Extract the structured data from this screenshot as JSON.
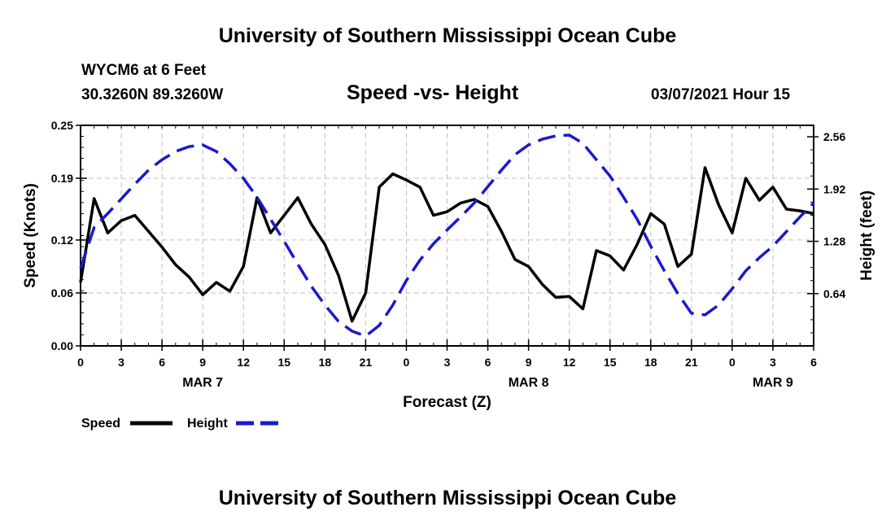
{
  "header": {
    "title": "University of Southern Mississippi Ocean Cube",
    "station_name": "WYCM6 at 6 Feet",
    "station_coords": "30.3260N 89.3260W",
    "run_time": "03/07/2021 Hour 15"
  },
  "footer": {
    "title": "University of Southern Mississippi Ocean Cube"
  },
  "colors": {
    "speed": "#000000",
    "height": "#1a1acc",
    "grid": "#c0c0c0"
  },
  "chart_data": {
    "type": "line",
    "title": "Speed -vs- Height",
    "xlabel": "Forecast (Z)",
    "ylabel": "Speed (Knots)",
    "y2label": "Height (feet)",
    "x_hours": [
      0,
      1,
      2,
      3,
      4,
      5,
      6,
      7,
      8,
      9,
      10,
      11,
      12,
      13,
      14,
      15,
      16,
      17,
      18,
      19,
      20,
      21,
      22,
      23,
      24,
      25,
      26,
      27,
      28,
      29,
      30,
      31,
      32,
      33,
      34,
      35,
      36,
      37,
      38,
      39,
      40,
      41,
      42,
      43,
      44,
      45,
      46,
      47,
      48,
      49,
      50,
      51,
      52,
      53,
      54
    ],
    "xlim": [
      0,
      54
    ],
    "x_ticks": [
      0,
      3,
      6,
      9,
      12,
      15,
      18,
      21,
      24,
      27,
      30,
      33,
      36,
      39,
      42,
      45,
      48,
      51,
      54
    ],
    "x_tick_labels": [
      "0",
      "3",
      "6",
      "9",
      "12",
      "15",
      "18",
      "21",
      "0",
      "3",
      "6",
      "9",
      "12",
      "15",
      "18",
      "21",
      "0",
      "3",
      "6"
    ],
    "date_labels": [
      {
        "hour": 9,
        "text": "MAR 7"
      },
      {
        "hour": 33,
        "text": "MAR 8"
      },
      {
        "hour": 51,
        "text": "MAR 9"
      }
    ],
    "ylim": [
      0,
      0.25
    ],
    "y_ticks": [
      0.0,
      0.06,
      0.12,
      0.19,
      0.25
    ],
    "y_tick_labels": [
      "0.00",
      "0.06",
      "0.12",
      "0.19",
      "0.25"
    ],
    "y2lim": [
      0.0,
      2.7
    ],
    "y2_ticks": [
      0.64,
      1.28,
      1.92,
      2.56
    ],
    "y2_tick_labels": [
      "0.64",
      "1.28",
      "1.92",
      "2.56"
    ],
    "series": [
      {
        "name": "Speed",
        "axis": "left",
        "style": "solid",
        "values": [
          0.072,
          0.167,
          0.128,
          0.142,
          0.148,
          0.13,
          0.112,
          0.092,
          0.078,
          0.058,
          0.072,
          0.062,
          0.09,
          0.168,
          0.128,
          0.148,
          0.168,
          0.138,
          0.115,
          0.08,
          0.028,
          0.06,
          0.18,
          0.195,
          0.188,
          0.18,
          0.148,
          0.152,
          0.162,
          0.166,
          0.158,
          0.13,
          0.098,
          0.09,
          0.07,
          0.055,
          0.056,
          0.042,
          0.108,
          0.102,
          0.086,
          0.115,
          0.15,
          0.138,
          0.09,
          0.104,
          0.202,
          0.16,
          0.128,
          0.19,
          0.165,
          0.18,
          0.155,
          0.153,
          0.15
        ]
      },
      {
        "name": "Height",
        "axis": "right",
        "style": "dashed",
        "values": [
          0.95,
          1.45,
          1.62,
          1.8,
          1.98,
          2.15,
          2.28,
          2.38,
          2.44,
          2.46,
          2.38,
          2.23,
          2.05,
          1.82,
          1.55,
          1.28,
          1.0,
          0.73,
          0.5,
          0.3,
          0.18,
          0.12,
          0.25,
          0.5,
          0.8,
          1.05,
          1.25,
          1.42,
          1.58,
          1.75,
          1.95,
          2.15,
          2.34,
          2.46,
          2.53,
          2.57,
          2.58,
          2.48,
          2.28,
          2.08,
          1.82,
          1.55,
          1.22,
          0.92,
          0.64,
          0.4,
          0.38,
          0.5,
          0.7,
          0.92,
          1.08,
          1.22,
          1.4,
          1.58,
          1.75
        ]
      }
    ],
    "legend": {
      "position": "bottom-left",
      "entries": [
        {
          "name": "Speed",
          "style": "solid"
        },
        {
          "name": "Height",
          "style": "dashed"
        }
      ]
    },
    "grid": true
  }
}
